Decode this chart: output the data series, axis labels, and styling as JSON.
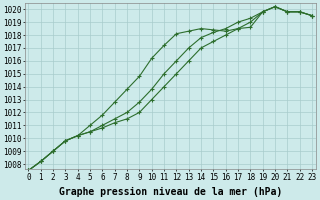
{
  "x": [
    0,
    1,
    2,
    3,
    4,
    5,
    6,
    7,
    8,
    9,
    10,
    11,
    12,
    13,
    14,
    15,
    16,
    17,
    18,
    19,
    20,
    21,
    22,
    23
  ],
  "line1": [
    1007.5,
    1008.2,
    1009.0,
    1009.8,
    1010.2,
    1011.0,
    1011.8,
    1012.8,
    1013.8,
    1014.8,
    1016.2,
    1017.2,
    1018.1,
    1018.3,
    1018.5,
    1018.4,
    1018.3,
    1018.5,
    1018.6,
    1019.8,
    1020.2,
    1019.8,
    1019.8,
    1019.5
  ],
  "line2": [
    1007.5,
    1008.2,
    1009.0,
    1009.8,
    1010.2,
    1010.5,
    1011.0,
    1011.5,
    1012.0,
    1012.8,
    1013.8,
    1015.0,
    1016.0,
    1017.0,
    1017.8,
    1018.2,
    1018.5,
    1019.0,
    1019.3,
    1019.8,
    1020.2,
    1019.8,
    1019.8,
    1019.5
  ],
  "line3": [
    1007.5,
    1008.2,
    1009.0,
    1009.8,
    1010.2,
    1010.5,
    1010.8,
    1011.2,
    1011.5,
    1012.0,
    1013.0,
    1014.0,
    1015.0,
    1016.0,
    1017.0,
    1017.5,
    1018.0,
    1018.5,
    1019.0,
    1019.8,
    1020.2,
    1019.8,
    1019.8,
    1019.5
  ],
  "yticks": [
    1008,
    1009,
    1010,
    1011,
    1012,
    1013,
    1014,
    1015,
    1016,
    1017,
    1018,
    1019,
    1020
  ],
  "xticks": [
    0,
    1,
    2,
    3,
    4,
    5,
    6,
    7,
    8,
    9,
    10,
    11,
    12,
    13,
    14,
    15,
    16,
    17,
    18,
    19,
    20,
    21,
    22,
    23
  ],
  "xlabel": "Graphe pression niveau de la mer (hPa)",
  "line_color": "#2d6e2d",
  "bg_color": "#cdeaea",
  "grid_color": "#a8cccc",
  "marker": "+",
  "markersize": 3.5,
  "linewidth": 0.8,
  "xlabel_fontsize": 7.0,
  "tick_fontsize": 5.5
}
